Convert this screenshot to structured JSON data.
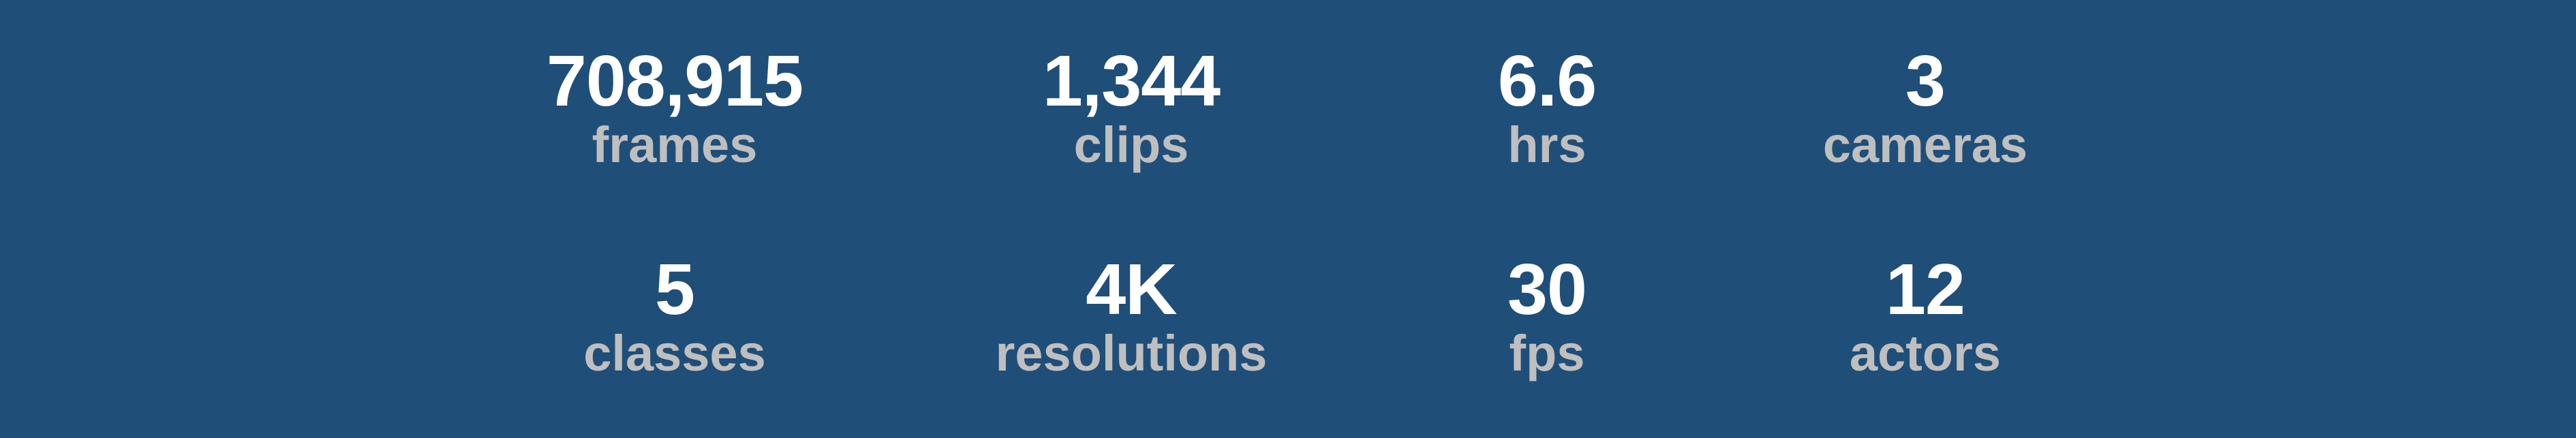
{
  "stats": [
    {
      "value": "708,915",
      "label": "frames"
    },
    {
      "value": "1,344",
      "label": "clips"
    },
    {
      "value": "6.6",
      "label": "hrs"
    },
    {
      "value": "3",
      "label": "cameras"
    },
    {
      "value": "5",
      "label": "classes"
    },
    {
      "value": "4K",
      "label": "resolutions"
    },
    {
      "value": "30",
      "label": "fps"
    },
    {
      "value": "12",
      "label": "actors"
    }
  ],
  "colors": {
    "background": "#1f4e79",
    "value_text": "#ffffff",
    "label_text": "#bfbfbf"
  }
}
